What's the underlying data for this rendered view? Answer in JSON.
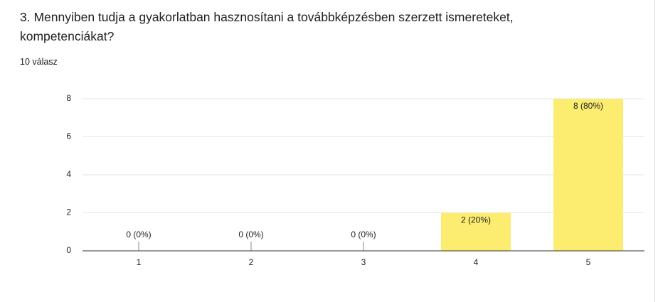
{
  "chart_data": {
    "type": "bar",
    "title": "3. Mennyiben tudja a gyakorlatban hasznosítani a továbbképzésben szerzett ismereteket, kompetenciákat?",
    "subtitle": "10 válasz",
    "categories": [
      "1",
      "2",
      "3",
      "4",
      "5"
    ],
    "values": [
      0,
      0,
      0,
      2,
      8
    ],
    "value_labels": [
      "0 (0%)",
      "0 (0%)",
      "0 (0%)",
      "2 (20%)",
      "8 (80%)"
    ],
    "color": "#fcec70",
    "ylim": [
      0,
      8
    ],
    "yticks": [
      0,
      2,
      4,
      6,
      8
    ],
    "grid": true
  }
}
